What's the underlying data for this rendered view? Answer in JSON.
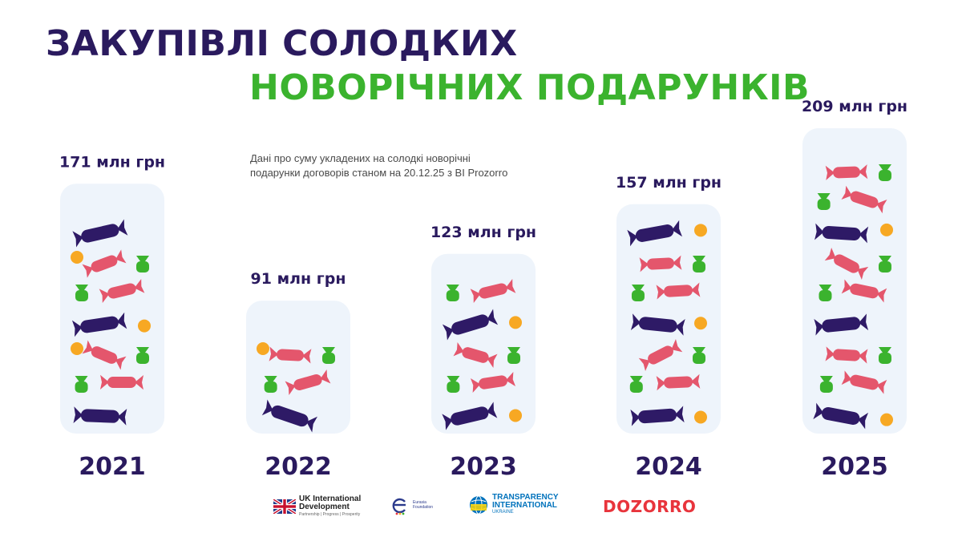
{
  "title": {
    "line1": "ЗАКУПІВЛІ СОЛОДКИХ",
    "line2": "НОВОРІЧНИХ ПОДАРУНКІВ"
  },
  "note": {
    "line1": "Дані про суму укладених на солодкі новорічні",
    "line2": "подарунки договорів станом на 20.12.25 з BI Prozorro"
  },
  "colors": {
    "title_dark": "#2a1a5e",
    "title_green": "#3bb32e",
    "column_bg": "#eef4fb",
    "candy_purple": "#2e1a66",
    "candy_pink": "#e4566c",
    "candy_green": "#3bb32e",
    "candy_orange": "#f7a823"
  },
  "chart_data": {
    "type": "bar",
    "title": "ЗАКУПІВЛІ СОЛОДКИХ НОВОРІЧНИХ ПОДАРУНКІВ",
    "categories": [
      "2021",
      "2022",
      "2023",
      "2024",
      "2025"
    ],
    "values": [
      171,
      91,
      123,
      157,
      209
    ],
    "value_labels": [
      "171 млн грн",
      "91 млн грн",
      "123 млн грн",
      "157 млн грн",
      "209 млн грн"
    ],
    "unit": "млн грн",
    "ylim": [
      0,
      209
    ],
    "grid": false,
    "legend": "none"
  },
  "logos": {
    "uk": {
      "line1": "UK International",
      "line2": "Development",
      "line3": "Partnership | Progress | Prosperity"
    },
    "eurasia": {
      "line1": "Eurasia",
      "line2": "Foundation"
    },
    "ti": {
      "line1": "TRANSPARENCY",
      "line2": "INTERNATIONAL",
      "line3": "UKRAINE"
    },
    "dozorro": {
      "text": "DOZORRO"
    }
  }
}
